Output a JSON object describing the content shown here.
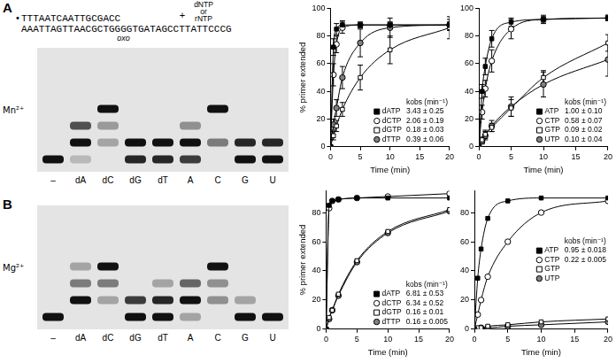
{
  "substrate": {
    "primer_mark": "•",
    "primer": "TTTAATCAATTGCGACC",
    "template": "AAATTAGTTAACGCTGGGGTGATAGCCTTATTCCCG",
    "lesion_label": "oxo",
    "lesion_index": 17,
    "plus": "+",
    "added": [
      "dNTP",
      "or",
      "rNTP"
    ]
  },
  "panels": [
    {
      "label": "A",
      "metal": "Mn²⁺",
      "gel": {
        "lanes": [
          {
            "label": "–",
            "bands": [
              {
                "extension": 0,
                "intensity": 1
              }
            ]
          },
          {
            "label": "dA",
            "bands": [
              {
                "extension": 0,
                "intensity": 0.2
              },
              {
                "extension": 1,
                "intensity": 1
              },
              {
                "extension": 2,
                "intensity": 0.7
              }
            ]
          },
          {
            "label": "dC",
            "bands": [
              {
                "extension": 1,
                "intensity": 0.3
              },
              {
                "extension": 2,
                "intensity": 0.35
              },
              {
                "extension": 3,
                "intensity": 1
              }
            ]
          },
          {
            "label": "dG",
            "bands": [
              {
                "extension": 0,
                "intensity": 0.9
              },
              {
                "extension": 1,
                "intensity": 1
              }
            ]
          },
          {
            "label": "dT",
            "bands": [
              {
                "extension": 0,
                "intensity": 0.9
              },
              {
                "extension": 1,
                "intensity": 1
              }
            ]
          },
          {
            "label": "A",
            "bands": [
              {
                "extension": 0,
                "intensity": 0.8
              },
              {
                "extension": 1,
                "intensity": 1
              },
              {
                "extension": 2,
                "intensity": 0.4
              }
            ]
          },
          {
            "label": "C",
            "bands": [
              {
                "extension": 1,
                "intensity": 0.5
              },
              {
                "extension": 3,
                "intensity": 1
              }
            ]
          },
          {
            "label": "G",
            "bands": [
              {
                "extension": 0,
                "intensity": 1
              },
              {
                "extension": 1,
                "intensity": 0.9
              }
            ]
          },
          {
            "label": "U",
            "bands": [
              {
                "extension": 0,
                "intensity": 1
              },
              {
                "extension": 1,
                "intensity": 0.9
              }
            ]
          }
        ]
      }
    },
    {
      "label": "B",
      "metal": "Mg²⁺",
      "gel": {
        "lanes": [
          {
            "label": "–",
            "bands": [
              {
                "extension": 0,
                "intensity": 1
              }
            ]
          },
          {
            "label": "dA",
            "bands": [
              {
                "extension": 1,
                "intensity": 1
              },
              {
                "extension": 2,
                "intensity": 0.5
              },
              {
                "extension": 3,
                "intensity": 0.3
              }
            ]
          },
          {
            "label": "dC",
            "bands": [
              {
                "extension": 1,
                "intensity": 0.3
              },
              {
                "extension": 2,
                "intensity": 0.5
              },
              {
                "extension": 3,
                "intensity": 1
              }
            ]
          },
          {
            "label": "dG",
            "bands": [
              {
                "extension": 0,
                "intensity": 1
              },
              {
                "extension": 1,
                "intensity": 0.8
              }
            ]
          },
          {
            "label": "dT",
            "bands": [
              {
                "extension": 0,
                "intensity": 1
              },
              {
                "extension": 1,
                "intensity": 0.9
              },
              {
                "extension": 2,
                "intensity": 0.3
              }
            ]
          },
          {
            "label": "A",
            "bands": [
              {
                "extension": 0,
                "intensity": 0.3
              },
              {
                "extension": 1,
                "intensity": 1
              },
              {
                "extension": 2,
                "intensity": 0.6
              }
            ]
          },
          {
            "label": "C",
            "bands": [
              {
                "extension": 1,
                "intensity": 0.4
              },
              {
                "extension": 2,
                "intensity": 0.4
              },
              {
                "extension": 3,
                "intensity": 1
              }
            ]
          },
          {
            "label": "G",
            "bands": [
              {
                "extension": 0,
                "intensity": 1
              },
              {
                "extension": 1,
                "intensity": 0.3
              }
            ]
          },
          {
            "label": "U",
            "bands": [
              {
                "extension": 0,
                "intensity": 1
              }
            ]
          }
        ]
      }
    }
  ],
  "chart_data": [
    {
      "type": "line",
      "x_label": "Time (min)",
      "y_label": "% primer extended",
      "xlim": [
        0,
        20
      ],
      "xticks": [
        0,
        5,
        10,
        15,
        20
      ],
      "ylim": [
        0,
        100
      ],
      "yticks": [
        0,
        20,
        40,
        60,
        80,
        100
      ],
      "grid": false,
      "legend": "lower right",
      "legend_title": "kobs (min⁻¹)",
      "x": [
        0,
        0.5,
        1,
        2,
        5,
        10,
        20
      ],
      "series": [
        {
          "name": "dATP",
          "color": "#000000",
          "marker": "square",
          "values": [
            0,
            72,
            85,
            88,
            88,
            88,
            88
          ],
          "errors": [
            null,
            6,
            4,
            3,
            2,
            2,
            2
          ],
          "kobs_label": "3.43 ± 0.25"
        },
        {
          "name": "dCTP",
          "color": "#ffffff",
          "marker": "circle",
          "values": [
            0,
            52,
            74,
            86,
            88,
            88,
            88
          ],
          "errors": [
            null,
            8,
            6,
            4,
            2,
            2,
            2
          ],
          "kobs_label": "2.06 ± 0.19"
        },
        {
          "name": "dGTP",
          "color": "#ffffff",
          "marker": "square",
          "values": [
            0,
            8,
            15,
            27,
            50,
            70,
            86
          ],
          "errors": [
            null,
            3,
            4,
            5,
            9,
            10,
            8
          ],
          "kobs_label": "0.18 ± 0.03"
        },
        {
          "name": "dTTP",
          "color": "#808080",
          "marker": "circle",
          "values": [
            0,
            16,
            28,
            50,
            75,
            86,
            88
          ],
          "errors": [
            null,
            4,
            6,
            8,
            10,
            7,
            4
          ],
          "kobs_label": "0.39 ± 0.06"
        }
      ]
    },
    {
      "type": "line",
      "x_label": "Time (min)",
      "xlim": [
        0,
        20
      ],
      "xticks": [
        0,
        5,
        10,
        15,
        20
      ],
      "ylim": [
        0,
        100
      ],
      "yticks": [
        0,
        20,
        40,
        60,
        80,
        100
      ],
      "grid": false,
      "legend": "lower right",
      "legend_title": "kobs (min⁻¹)",
      "x": [
        0,
        0.5,
        1,
        2,
        5,
        10,
        20
      ],
      "series": [
        {
          "name": "ATP",
          "color": "#000000",
          "marker": "square",
          "values": [
            0,
            40,
            58,
            78,
            90,
            92,
            93
          ],
          "errors": [
            null,
            5,
            6,
            6,
            3,
            2,
            2
          ],
          "kobs_label": "1.00 ± 0.10"
        },
        {
          "name": "CTP",
          "color": "#ffffff",
          "marker": "circle",
          "values": [
            0,
            25,
            42,
            62,
            85,
            92,
            93
          ],
          "errors": [
            null,
            5,
            6,
            8,
            7,
            3,
            2
          ],
          "kobs_label": "0.58 ± 0.07"
        },
        {
          "name": "GTP",
          "color": "#ffffff",
          "marker": "square",
          "values": [
            0,
            5,
            9,
            14,
            28,
            50,
            75
          ],
          "errors": [
            null,
            2,
            3,
            3,
            6,
            5,
            6
          ],
          "kobs_label": "0.09 ± 0.02"
        },
        {
          "name": "UTP",
          "color": "#808080",
          "marker": "circle",
          "values": [
            0,
            4,
            8,
            15,
            29,
            45,
            63
          ],
          "errors": [
            null,
            2,
            3,
            4,
            7,
            9,
            12
          ],
          "kobs_label": "0.10 ± 0.04"
        }
      ]
    },
    {
      "type": "line",
      "x_label": "Time (min)",
      "y_label": "% primer extended",
      "xlim": [
        0,
        20
      ],
      "xticks": [
        0,
        5,
        10,
        15,
        20
      ],
      "ylim": [
        0,
        95
      ],
      "yticks": [
        0,
        20,
        40,
        60,
        80
      ],
      "grid": false,
      "legend": "lower right",
      "legend_title": "kobs (min⁻¹)",
      "x": [
        0,
        0.5,
        1,
        2,
        5,
        10,
        20
      ],
      "series": [
        {
          "name": "dATP",
          "color": "#000000",
          "marker": "square",
          "values": [
            0,
            85,
            88,
            89,
            90,
            90,
            90
          ],
          "kobs_label": "6.81 ± 0.53"
        },
        {
          "name": "dCTP",
          "color": "#ffffff",
          "marker": "circle",
          "values": [
            0,
            83,
            88,
            89,
            90,
            91,
            93
          ],
          "kobs_label": "6.34 ± 0.52"
        },
        {
          "name": "dGTP",
          "color": "#ffffff",
          "marker": "square",
          "values": [
            0,
            8,
            13,
            24,
            47,
            67,
            82
          ],
          "kobs_label": "0.16 ± 0.01"
        },
        {
          "name": "dTTP",
          "color": "#808080",
          "marker": "circle",
          "values": [
            0,
            7,
            13,
            23,
            46,
            66,
            81
          ],
          "kobs_label": "0.16 ± 0.005"
        }
      ]
    },
    {
      "type": "line",
      "x_label": "Time (min)",
      "xlim": [
        0,
        20
      ],
      "xticks": [
        0,
        5,
        10,
        15,
        20
      ],
      "ylim": [
        0,
        95
      ],
      "yticks": [
        0,
        20,
        40,
        60,
        80
      ],
      "grid": false,
      "legend": "center right",
      "legend_title": "kobs (min⁻¹)",
      "x": [
        0,
        0.5,
        1,
        2,
        5,
        10,
        20
      ],
      "series": [
        {
          "name": "ATP",
          "color": "#000000",
          "marker": "square",
          "values": [
            0,
            35,
            55,
            76,
            88,
            90,
            90
          ],
          "kobs_label": "0.95 ± 0.018"
        },
        {
          "name": "CTP",
          "color": "#ffffff",
          "marker": "circle",
          "values": [
            0,
            10,
            20,
            36,
            60,
            80,
            88
          ],
          "kobs_label": "0.22 ± 0.005"
        },
        {
          "name": "GTP",
          "color": "#ffffff",
          "marker": "square",
          "values": [
            0,
            1,
            1,
            2,
            3,
            5,
            7
          ]
        },
        {
          "name": "UTP",
          "color": "#808080",
          "marker": "circle",
          "values": [
            0,
            0,
            1,
            1,
            2,
            3,
            5
          ]
        }
      ]
    }
  ]
}
